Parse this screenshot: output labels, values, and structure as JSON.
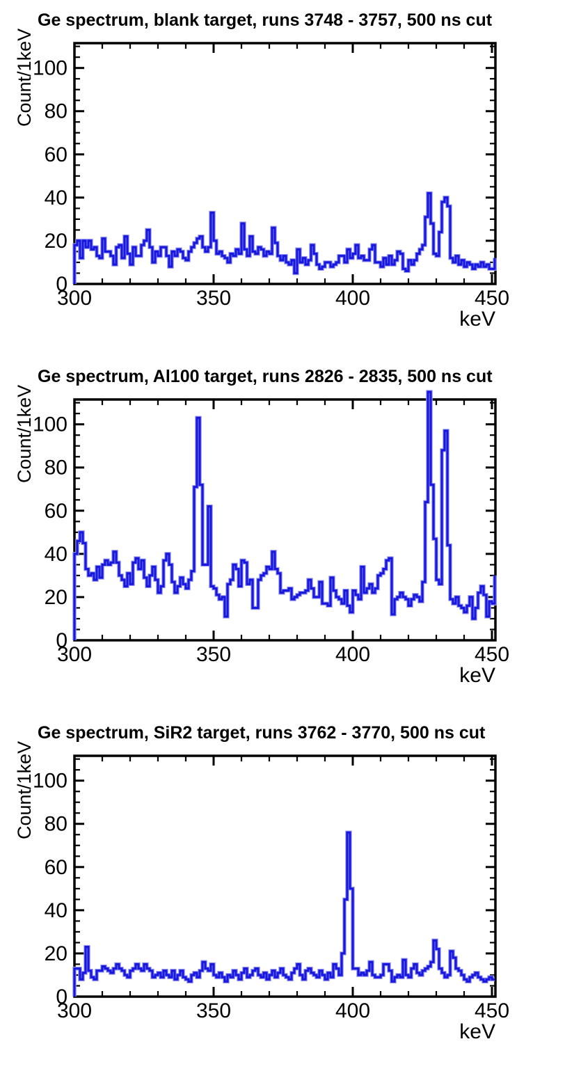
{
  "page": {
    "background": "#ffffff"
  },
  "colors": {
    "histogram_line": "#1717dd",
    "histogram_halo": "#9a9af0",
    "axis": "#000000"
  },
  "chart_data": [
    {
      "type": "histogram-step-line",
      "title": "Ge spectrum, blank target, runs 3748 - 3757, 500 ns cut",
      "xlabel": "keV",
      "ylabel": "Count/1keV",
      "x_start": 300,
      "bin_width_kev": 1,
      "xlim": [
        300,
        451.25
      ],
      "ylim": [
        0,
        111.5
      ],
      "x_ticks": [
        300,
        350,
        400,
        450
      ],
      "x_minor_tick_step": 10,
      "y_ticks": [
        0,
        20,
        40,
        60,
        80,
        100
      ],
      "y_minor_tick_step": 5,
      "grid": false,
      "legend": null,
      "counts": [
        18,
        20,
        12,
        20,
        17,
        20,
        16,
        17,
        13,
        12,
        21,
        15,
        15,
        13,
        9,
        17,
        18,
        12,
        22,
        14,
        9,
        17,
        13,
        13,
        18,
        20,
        25,
        17,
        10,
        15,
        13,
        17,
        17,
        13,
        8,
        15,
        13,
        16,
        15,
        12,
        11,
        15,
        17,
        19,
        21,
        22,
        17,
        15,
        17,
        33,
        20,
        14,
        15,
        13,
        12,
        10,
        14,
        13,
        16,
        14,
        28,
        16,
        13,
        22,
        15,
        14,
        17,
        16,
        13,
        15,
        14,
        26,
        19,
        13,
        11,
        13,
        10,
        9,
        11,
        5,
        16,
        10,
        12,
        9,
        11,
        18,
        14,
        9,
        7,
        8,
        10,
        10,
        8,
        9,
        10,
        13,
        13,
        10,
        16,
        12,
        14,
        18,
        12,
        13,
        11,
        11,
        16,
        18,
        10,
        10,
        8,
        12,
        9,
        13,
        9,
        11,
        15,
        14,
        7,
        6,
        11,
        9,
        11,
        14,
        16,
        18,
        31,
        42,
        28,
        14,
        13,
        24,
        38,
        40,
        36,
        12,
        10,
        13,
        9,
        11,
        8,
        10,
        9,
        7,
        9,
        8,
        10,
        8,
        9,
        7,
        7,
        12
      ]
    },
    {
      "type": "histogram-step-line",
      "title": "Ge spectrum, Al100 target, runs 2826 - 2835, 500 ns cut",
      "xlabel": "keV",
      "ylabel": "Count/1keV",
      "x_start": 300,
      "bin_width_kev": 1,
      "xlim": [
        300,
        451.25
      ],
      "ylim": [
        0,
        111.5
      ],
      "x_ticks": [
        300,
        350,
        400,
        450
      ],
      "x_minor_tick_step": 10,
      "y_ticks": [
        0,
        20,
        40,
        60,
        80,
        100
      ],
      "y_minor_tick_step": 5,
      "grid": false,
      "legend": null,
      "counts": [
        40,
        46,
        50,
        45,
        33,
        30,
        31,
        28,
        34,
        29,
        35,
        37,
        35,
        36,
        41,
        36,
        30,
        28,
        25,
        31,
        26,
        36,
        38,
        33,
        37,
        29,
        25,
        30,
        34,
        28,
        22,
        25,
        37,
        40,
        35,
        27,
        22,
        25,
        29,
        26,
        24,
        28,
        32,
        71,
        103,
        72,
        35,
        35,
        62,
        25,
        24,
        21,
        19,
        20,
        11,
        26,
        28,
        35,
        33,
        25,
        37,
        36,
        26,
        28,
        15,
        15,
        28,
        30,
        31,
        34,
        33,
        41,
        33,
        31,
        22,
        23,
        23,
        24,
        19,
        20,
        21,
        22,
        22,
        23,
        28,
        24,
        20,
        20,
        27,
        17,
        17,
        16,
        29,
        23,
        20,
        19,
        17,
        23,
        16,
        13,
        23,
        21,
        19,
        34,
        22,
        24,
        26,
        22,
        24,
        30,
        31,
        33,
        37,
        38,
        12,
        19,
        20,
        22,
        20,
        19,
        16,
        19,
        21,
        20,
        18,
        27,
        64,
        115,
        72,
        47,
        28,
        26,
        88,
        97,
        44,
        19,
        17,
        20,
        16,
        15,
        13,
        16,
        20,
        10,
        15,
        22,
        25,
        21,
        11,
        18,
        17,
        30
      ]
    },
    {
      "type": "histogram-step-line",
      "title": "Ge spectrum, SiR2 target, runs 3762 - 3770, 500 ns cut",
      "xlabel": "keV",
      "ylabel": "Count/1keV",
      "x_start": 300,
      "bin_width_kev": 1,
      "xlim": [
        300,
        451.25
      ],
      "ylim": [
        0,
        111.5
      ],
      "x_ticks": [
        300,
        350,
        400,
        450
      ],
      "x_minor_tick_step": 10,
      "y_ticks": [
        0,
        20,
        40,
        60,
        80,
        100
      ],
      "y_minor_tick_step": 5,
      "grid": false,
      "legend": null,
      "counts": [
        13,
        13,
        8,
        11,
        23,
        12,
        9,
        8,
        12,
        12,
        14,
        13,
        12,
        11,
        13,
        15,
        13,
        12,
        10,
        9,
        12,
        13,
        15,
        13,
        12,
        15,
        13,
        12,
        9,
        10,
        11,
        9,
        12,
        10,
        9,
        12,
        8,
        10,
        12,
        9,
        8,
        7,
        10,
        11,
        9,
        12,
        16,
        13,
        12,
        15,
        10,
        9,
        11,
        9,
        7,
        10,
        9,
        12,
        10,
        8,
        11,
        13,
        9,
        10,
        12,
        13,
        10,
        9,
        11,
        8,
        10,
        12,
        9,
        11,
        13,
        10,
        9,
        8,
        11,
        13,
        15,
        10,
        8,
        12,
        13,
        11,
        10,
        9,
        12,
        10,
        8,
        11,
        9,
        15,
        13,
        10,
        20,
        45,
        76,
        50,
        13,
        13,
        10,
        11,
        10,
        12,
        16,
        10,
        9,
        9,
        10,
        15,
        15,
        12,
        7,
        9,
        10,
        9,
        17,
        10,
        9,
        13,
        15,
        11,
        10,
        12,
        13,
        14,
        16,
        26,
        22,
        13,
        11,
        9,
        10,
        21,
        18,
        13,
        12,
        10,
        8,
        7,
        9,
        10,
        11,
        9,
        8,
        7,
        8,
        9,
        8,
        8
      ]
    }
  ]
}
